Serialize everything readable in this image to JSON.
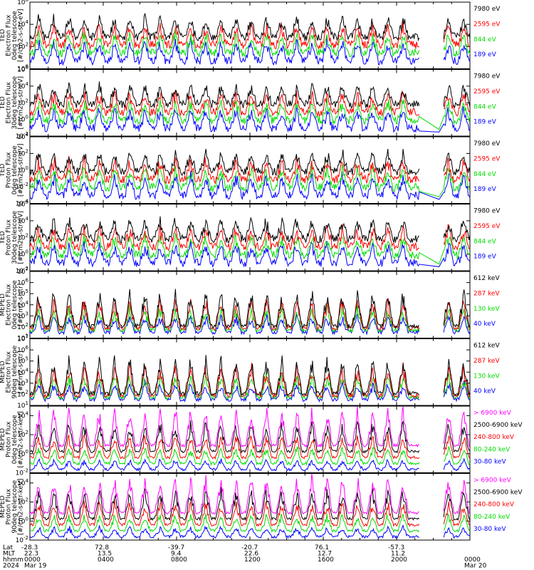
{
  "colors": {
    "black": "#000000",
    "red": "#ff0000",
    "green": "#00dd00",
    "blue": "#0000ff",
    "magenta": "#ff00ff"
  },
  "chart_data": [
    {
      "type": "line",
      "ylabel": [
        "TED",
        "Electron Flux",
        "0deg telescope",
        "[#/cm2-s-str-eV]"
      ],
      "yticks": [
        "10^0",
        "10^2",
        "10^4",
        "10^6"
      ],
      "ylim_log10": [
        0,
        6
      ],
      "y_log": true,
      "series": [
        {
          "name": "7980 eV",
          "color": "black"
        },
        {
          "name": "2595 eV",
          "color": "red"
        },
        {
          "name": "844 eV",
          "color": "green"
        },
        {
          "name": "189 eV",
          "color": "blue"
        }
      ]
    },
    {
      "type": "line",
      "ylabel": [
        "TED",
        "Electron Flux",
        "30deg telescope",
        "[#/cm2-s-str-eV]"
      ],
      "yticks": [
        "10^-2",
        "10^0",
        "10^2",
        "10^4",
        "10^6"
      ],
      "ylim_log10": [
        -2,
        6
      ],
      "y_log": true,
      "series": [
        {
          "name": "7980 eV",
          "color": "black"
        },
        {
          "name": "2595 eV",
          "color": "red"
        },
        {
          "name": "844 eV",
          "color": "green"
        },
        {
          "name": "189 eV",
          "color": "blue"
        }
      ]
    },
    {
      "type": "line",
      "ylabel": [
        "TED",
        "Proton Flux",
        "0deg telescope",
        "[#/cm2-s-str-eV]"
      ],
      "yticks": [
        "10^-4",
        "10^-2",
        "10^0",
        "10^2",
        "10^4"
      ],
      "ylim_log10": [
        -4,
        4
      ],
      "y_log": true,
      "series": [
        {
          "name": "7980 eV",
          "color": "black"
        },
        {
          "name": "2595 eV",
          "color": "red"
        },
        {
          "name": "844 eV",
          "color": "green"
        },
        {
          "name": "189 eV",
          "color": "blue"
        }
      ]
    },
    {
      "type": "line",
      "ylabel": [
        "TED",
        "Proton Flux",
        "30deg telescope",
        "[#/cm2-s-str-eV]"
      ],
      "yticks": [
        "10^-2",
        "10^0",
        "10^2",
        "10^4",
        "10^6"
      ],
      "ylim_log10": [
        -2,
        6
      ],
      "y_log": true,
      "series": [
        {
          "name": "7980 eV",
          "color": "black"
        },
        {
          "name": "2595 eV",
          "color": "red"
        },
        {
          "name": "844 eV",
          "color": "green"
        },
        {
          "name": "189 eV",
          "color": "blue"
        }
      ]
    },
    {
      "type": "line",
      "ylabel": [
        "MEPED",
        "Electron Flux",
        "0deg telescope",
        "[#/cm2-s-str]"
      ],
      "yticks": [
        "10^1",
        "10^2",
        "10^3",
        "10^4",
        "10^5",
        "10^6",
        "10^7"
      ],
      "ylim_log10": [
        1,
        7
      ],
      "y_log": true,
      "series": [
        {
          "name": "612 keV",
          "color": "black"
        },
        {
          "name": "287 keV",
          "color": "red"
        },
        {
          "name": "130 keV",
          "color": "green"
        },
        {
          "name": "40 keV",
          "color": "blue"
        }
      ]
    },
    {
      "type": "line",
      "ylabel": [
        "MEPED",
        "Electron Flux",
        "90deg telescope",
        "[#/cm2-s-str]"
      ],
      "yticks": [
        "10^1",
        "10^2",
        "10^3",
        "10^4",
        "10^5",
        "10^6",
        "10^7"
      ],
      "ylim_log10": [
        1,
        7
      ],
      "y_log": true,
      "series": [
        {
          "name": "612 keV",
          "color": "black"
        },
        {
          "name": "287 keV",
          "color": "red"
        },
        {
          "name": "130 keV",
          "color": "green"
        },
        {
          "name": "40 keV",
          "color": "blue"
        }
      ]
    },
    {
      "type": "line",
      "ylabel": [
        "MEPED",
        "Proton Flux",
        "0deg telescope",
        "[#/cm2-s-str-keV]"
      ],
      "yticks": [
        "10^-2",
        "10^0",
        "10^2",
        "10^4"
      ],
      "ylim_log10": [
        -2,
        5
      ],
      "y_log": true,
      "series": [
        {
          "name": "> 6900 keV",
          "color": "magenta"
        },
        {
          "name": "2500-6900 keV",
          "color": "black"
        },
        {
          "name": "240-800 keV",
          "color": "red"
        },
        {
          "name": "80-240 keV",
          "color": "green"
        },
        {
          "name": "30-80 keV",
          "color": "blue"
        }
      ]
    },
    {
      "type": "line",
      "ylabel": [
        "MEPED",
        "Proton Flux",
        "90deg telescope",
        "[#/cm2-s-str-keV]"
      ],
      "yticks": [
        "10^-2",
        "10^0",
        "10^2",
        "10^4"
      ],
      "ylim_log10": [
        -2,
        5
      ],
      "y_log": true,
      "series": [
        {
          "name": "> 6900 keV",
          "color": "magenta"
        },
        {
          "name": "2500-6900 keV",
          "color": "black"
        },
        {
          "name": "240-800 keV",
          "color": "red"
        },
        {
          "name": "80-240 keV",
          "color": "green"
        },
        {
          "name": "30-80 keV",
          "color": "blue"
        }
      ]
    }
  ],
  "x_axis": {
    "row_labels": [
      "Lat",
      "MLT",
      "hhmm",
      "2024"
    ],
    "ticks": [
      {
        "lat": "-28.3",
        "mlt": "22.3",
        "hhmm": "0000",
        "date": "Mar 19"
      },
      {
        "lat": "72.8",
        "mlt": "13.5",
        "hhmm": "0400",
        "date": ""
      },
      {
        "lat": "-39.7",
        "mlt": "9.4",
        "hhmm": "0800",
        "date": ""
      },
      {
        "lat": "-20.7",
        "mlt": "22.6",
        "hhmm": "1200",
        "date": ""
      },
      {
        "lat": "76.1",
        "mlt": "12.7",
        "hhmm": "1600",
        "date": ""
      },
      {
        "lat": "-57.3",
        "mlt": "11.2",
        "hhmm": "2000",
        "date": ""
      },
      {
        "lat": "",
        "mlt": "",
        "hhmm": "0000",
        "date": "Mar 20"
      }
    ]
  }
}
